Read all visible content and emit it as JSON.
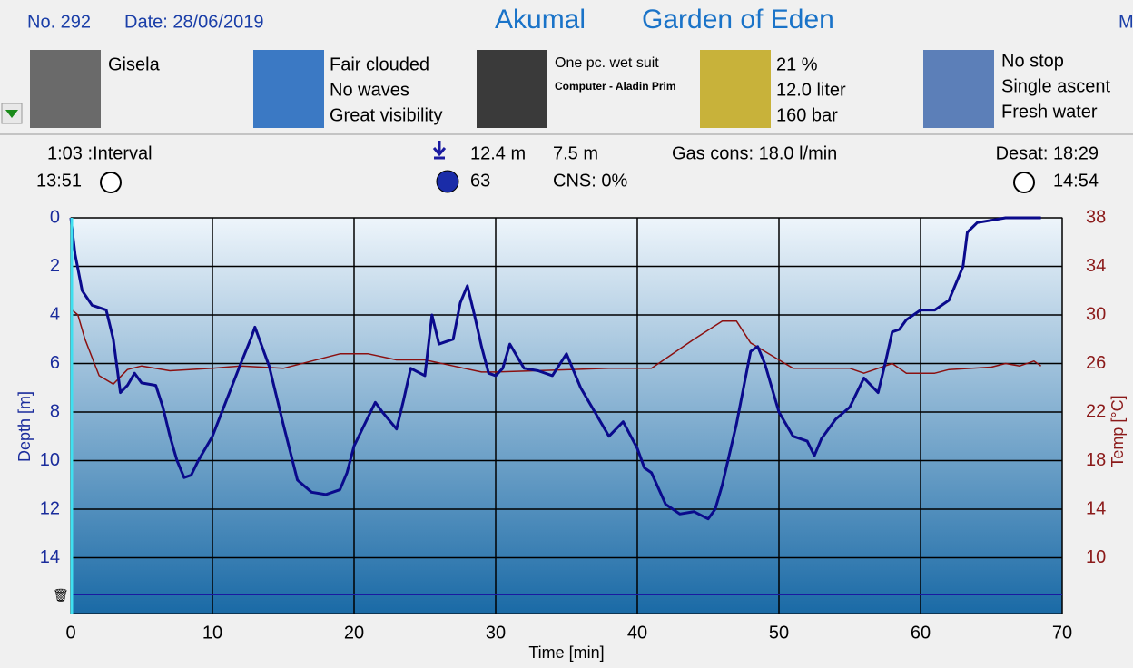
{
  "header": {
    "number": "No. 292",
    "date": "Date: 28/06/2019",
    "location": "Akumal",
    "site": "Garden of Eden",
    "cut": "M"
  },
  "info": {
    "buddy": [
      "Gisela"
    ],
    "weather": [
      "Fair clouded",
      "No waves",
      "Great visibility"
    ],
    "equipment": [
      "One pc. wet suit",
      "Computer - Aladin Prim"
    ],
    "tank": [
      "21 %",
      "12.0 liter",
      "160 bar"
    ],
    "dive": [
      "No stop",
      "Single ascent",
      "Fresh water"
    ]
  },
  "stats": {
    "interval": "1:03 :Interval",
    "start_time": "13:51",
    "max_depth": "12.4 m",
    "avg_depth": "7.5 m",
    "gas": "Gas cons: 18.0 l/min",
    "desat": "Desat: 18:29",
    "duration": "63",
    "cns": "CNS:  0%",
    "end_time": "14:54"
  },
  "chart_data": {
    "type": "line",
    "xlabel": "Time [min]",
    "ylabel": "Depth [m]",
    "y2label": "Temp [°C]",
    "xlim": [
      0,
      70
    ],
    "xticks": [
      0,
      10,
      20,
      30,
      40,
      50,
      60,
      70
    ],
    "ylim": [
      0,
      16.3
    ],
    "yticks": [
      0,
      2,
      4,
      6,
      8,
      10,
      12,
      14
    ],
    "yreverse": true,
    "y2lim": [
      5.4,
      38
    ],
    "y2ticks": [
      10,
      14,
      18,
      22,
      26,
      30,
      34,
      38
    ],
    "grid": true,
    "series": [
      {
        "name": "Depth",
        "color": "#0a0a8c",
        "x": [
          0,
          0.3,
          0.8,
          1.5,
          2.5,
          3,
          3.5,
          4,
          4.5,
          5,
          6,
          6.5,
          7,
          7.5,
          8,
          8.5,
          9,
          10,
          11,
          12,
          12.7,
          13,
          13.5,
          14,
          15,
          16,
          17,
          18,
          19,
          19.5,
          20,
          21,
          21.5,
          22,
          23,
          23.5,
          24,
          25,
          25.5,
          26,
          27,
          27.5,
          28,
          28.5,
          29,
          29.5,
          30,
          30.5,
          31,
          32,
          33,
          34,
          35,
          36,
          37,
          38,
          39,
          40,
          40.5,
          41,
          42,
          43,
          44,
          45,
          45.5,
          46,
          47,
          48,
          48.5,
          49,
          50,
          51,
          52,
          52.5,
          53,
          54,
          55,
          56,
          57,
          57.5,
          58,
          58.5,
          59,
          60,
          61,
          62,
          63,
          63.3,
          64,
          65,
          66,
          68.5
        ],
        "values": [
          0,
          1.5,
          3,
          3.6,
          3.8,
          5,
          7.2,
          6.9,
          6.4,
          6.8,
          6.9,
          7.8,
          9,
          10,
          10.7,
          10.6,
          10,
          9,
          7.5,
          6,
          5,
          4.5,
          5.3,
          6.1,
          8.5,
          10.8,
          11.3,
          11.4,
          11.2,
          10.5,
          9.4,
          8.2,
          7.6,
          8,
          8.7,
          7.5,
          6.2,
          6.5,
          4,
          5.2,
          5,
          3.5,
          2.8,
          4,
          5.3,
          6.4,
          6.5,
          6.2,
          5.2,
          6.2,
          6.3,
          6.5,
          5.6,
          7,
          8,
          9,
          8.4,
          9.5,
          10.3,
          10.5,
          11.8,
          12.2,
          12.1,
          12.4,
          12,
          11,
          8.5,
          5.5,
          5.3,
          6,
          8,
          9,
          9.2,
          9.8,
          9.1,
          8.3,
          7.8,
          6.6,
          7.2,
          6,
          4.7,
          4.6,
          4.2,
          3.8,
          3.8,
          3.4,
          2,
          0.6,
          0.2,
          0.1,
          0,
          0
        ]
      },
      {
        "name": "Temp",
        "color": "#8b1010",
        "axis": "y2",
        "x": [
          0,
          0.5,
          1,
          2,
          3,
          4,
          5,
          7,
          10,
          12,
          15,
          19,
          21,
          23,
          25,
          27,
          29,
          30,
          38,
          41,
          42,
          44,
          46,
          47,
          48,
          49,
          50,
          51,
          55,
          56,
          58,
          59,
          61,
          62,
          65,
          66,
          67,
          68,
          68.5
        ],
        "values": [
          30.5,
          30,
          28,
          25,
          24.3,
          25.5,
          25.8,
          25.4,
          25.6,
          25.8,
          25.6,
          26.8,
          26.8,
          26.3,
          26.3,
          25.8,
          25.3,
          25.3,
          25.6,
          25.6,
          26.4,
          28,
          29.5,
          29.5,
          27.7,
          27,
          26.3,
          25.6,
          25.6,
          25.2,
          26,
          25.2,
          25.2,
          25.5,
          25.7,
          26,
          25.8,
          26.2,
          25.8
        ]
      }
    ]
  }
}
